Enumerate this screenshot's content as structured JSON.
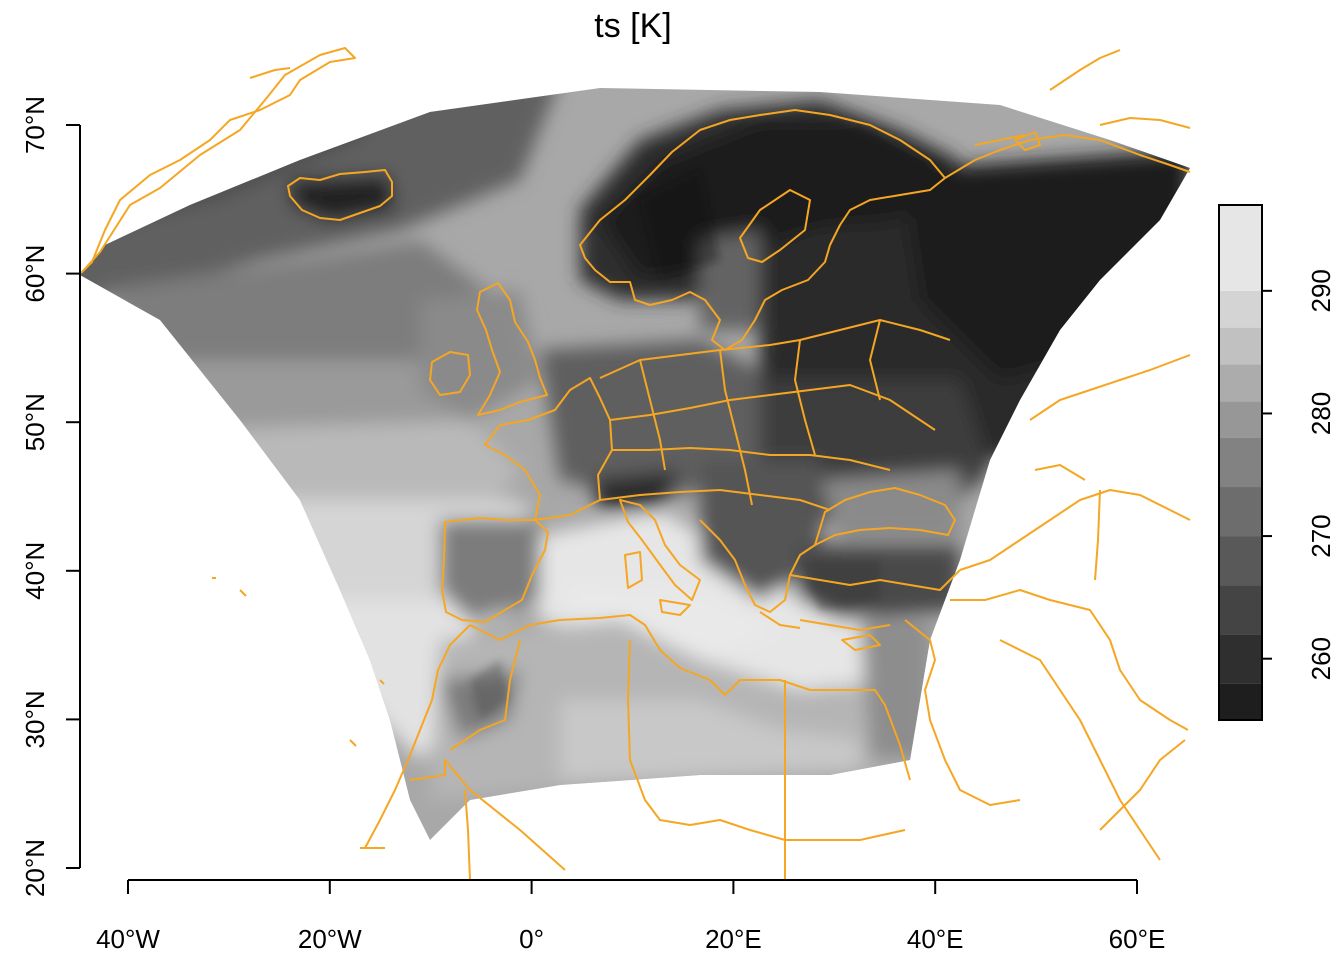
{
  "chart_data": {
    "type": "heatmap",
    "title": "ts [K]",
    "projection": "Lambert conformal conic, regional European domain",
    "x_axis": {
      "ticks": [
        -40,
        -20,
        0,
        20,
        40,
        60
      ],
      "tick_labels": [
        "40°W",
        "20°W",
        "0°",
        "20°E",
        "40°E",
        "60°E"
      ],
      "range": [
        -45,
        65
      ]
    },
    "y_axis": {
      "ticks": [
        20,
        30,
        40,
        50,
        60,
        70
      ],
      "tick_labels": [
        "20°N",
        "30°N",
        "40°N",
        "50°N",
        "60°N",
        "70°N"
      ],
      "range": [
        20,
        71
      ]
    },
    "colorbar": {
      "range": [
        255,
        297
      ],
      "ticks": [
        260,
        270,
        280,
        290
      ],
      "tick_labels": [
        "260",
        "270",
        "280",
        "290"
      ],
      "breaks": [
        255,
        258,
        262,
        266,
        270,
        274,
        278,
        281,
        284,
        287,
        290,
        297
      ],
      "colors": [
        "#1e1e1e",
        "#2f2f2f",
        "#444444",
        "#595959",
        "#6d6d6d",
        "#828282",
        "#979797",
        "#acacac",
        "#c1c1c1",
        "#d4d4d4",
        "#e6e6e6"
      ]
    },
    "overlay": {
      "type": "country borders and coastlines",
      "color": "#f5a623"
    },
    "field_description": "Surface temperature: coldest (~255 K) over Scandinavia, Iceland and northwest Russia; ~270-280 K over central Europe and the northern Atlantic; ~285-292 K over the Mediterranean Sea and the southern Atlantic; warmest (~290 K) over the Sahara"
  }
}
